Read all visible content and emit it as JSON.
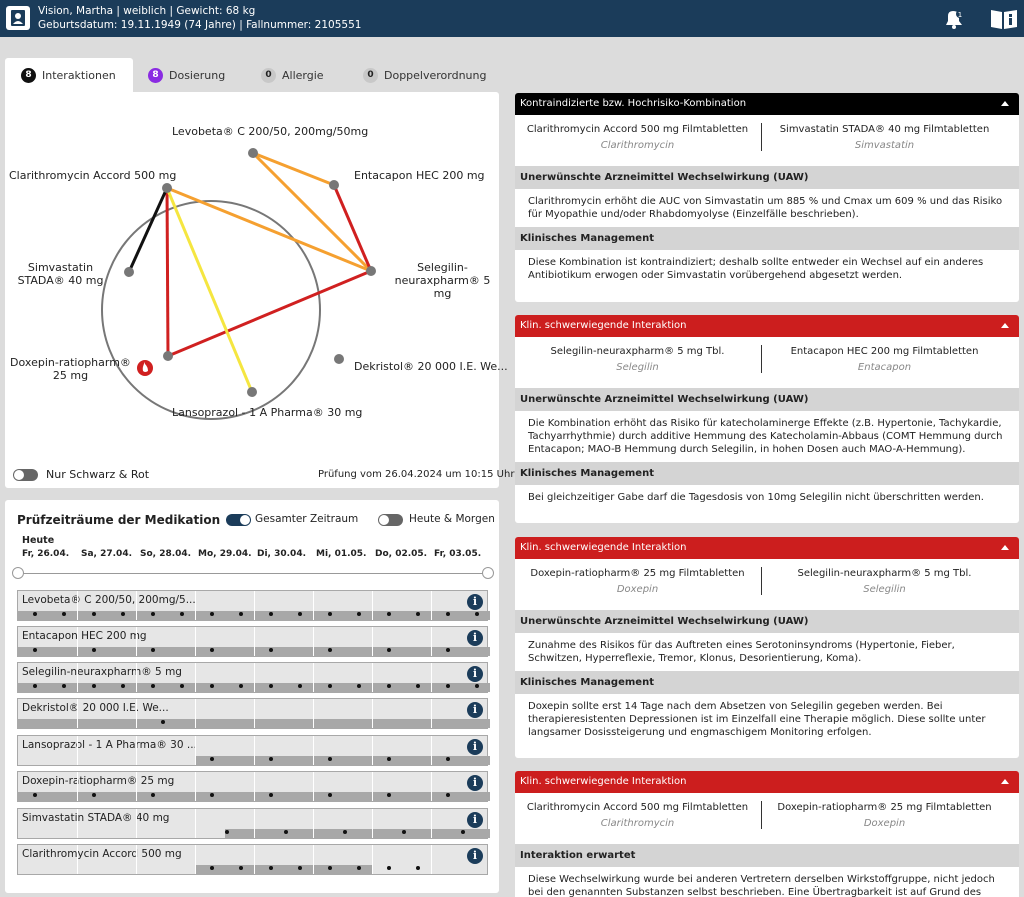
{
  "patient": {
    "line1": "Vision, Martha | weiblich | Gewicht: 68 kg",
    "line2": "Geburtsdatum: 19.11.1949 (74 Jahre) | Fallnummer: 2105551",
    "notifications": "1"
  },
  "tabs": [
    {
      "count": "8",
      "label": "Interaktionen",
      "color": "#111111"
    },
    {
      "count": "8",
      "label": "Dosierung",
      "color": "#8a2be2"
    },
    {
      "count": "0",
      "label": "Allergie",
      "color": "#cccccc"
    },
    {
      "count": "0",
      "label": "Doppelverordnung",
      "color": "#cccccc"
    }
  ],
  "graph": {
    "nodes": [
      "Levobeta® C 200/50, 200mg/50mg",
      "Entacapon HEC 200 mg",
      "Selegilin-neuraxpharm® 5 mg",
      "Dekristol® 20 000 I.E. We...",
      "Lansoprazol - 1 A Pharma® 30 mg",
      "Doxepin-ratiopharm® 25 mg",
      "Simvastatin STADA® 40 mg",
      "Clarithromycin Accord 500 mg"
    ],
    "toggle_label": "Nur Schwarz & Rot",
    "check_date": "Prüfung vom 26.04.2024 um 10:15 Uhr",
    "edge_colors": {
      "black": "#111111",
      "red": "#d02020",
      "orange": "#f5a030",
      "yellow": "#f5e640"
    }
  },
  "periods": {
    "title": "Prüfzeiträume der Medikation",
    "toggle1": "Gesamter Zeitraum",
    "toggle2": "Heute & Morgen",
    "today": "Heute",
    "days": [
      "Fr, 26.04.",
      "Sa, 27.04.",
      "So, 28.04.",
      "Mo, 29.04.",
      "Di, 30.04.",
      "Mi, 01.05.",
      "Do, 02.05.",
      "Fr, 03.05."
    ],
    "meds": [
      "Levobeta® C 200/50, 200mg/5...",
      "Entacapon HEC 200 mg",
      "Selegilin-neuraxpharm® 5 mg",
      "Dekristol® 20 000 I.E. We...",
      "Lansoprazol - 1 A Pharma® 30 ...",
      "Doxepin-ratiopharm® 25 mg",
      "Simvastatin STADA® 40 mg",
      "Clarithromycin Accord 500 mg"
    ]
  },
  "cards": [
    {
      "header": "Kontraindizierte bzw. Hochrisiko-Kombination",
      "color": "#000000",
      "drug1": "Clarithromycin Accord 500 mg Filmtabletten",
      "sub1": "Clarithromycin",
      "drug2": "Simvastatin STADA® 40 mg Filmtabletten",
      "sub2": "Simvastatin",
      "s1": "Unerwünschte Arzneimittel Wechselwirkung (UAW)",
      "t1": "Clarithromycin erhöht die AUC von Simvastatin um 885 % und Cmax um 609 % und das Risiko für Myopathie und/oder Rhabdomyolyse (Einzelfälle beschrieben).",
      "s2": "Klinisches Management",
      "t2": "Diese Kombination ist kontraindiziert; deshalb sollte entweder ein Wechsel auf ein anderes Antibiotikum erwogen oder Simvastatin vorübergehend abgesetzt werden."
    },
    {
      "header": "Klin. schwerwiegende Interaktion",
      "color": "#cc1e1e",
      "drug1": "Selegilin-neuraxpharm® 5 mg Tbl.",
      "sub1": "Selegilin",
      "drug2": "Entacapon HEC 200 mg Filmtabletten",
      "sub2": "Entacapon",
      "s1": "Unerwünschte Arzneimittel Wechselwirkung (UAW)",
      "t1": "Die Kombination erhöht das Risiko für katecholaminerge Effekte (z.B. Hypertonie, Tachykardie, Tachyarrhythmie) durch additive Hemmung des Katecholamin-Abbaus (COMT Hemmung durch Entacapon; MAO-B Hemmung durch Selegilin, in hohen Dosen auch MAO-A-Hemmung).",
      "s2": "Klinisches Management",
      "t2": "Bei gleichzeitiger Gabe darf die Tagesdosis von 10mg Selegilin nicht überschritten werden."
    },
    {
      "header": "Klin. schwerwiegende Interaktion",
      "color": "#cc1e1e",
      "drug1": "Doxepin-ratiopharm® 25 mg Filmtabletten",
      "sub1": "Doxepin",
      "drug2": "Selegilin-neuraxpharm® 5 mg Tbl.",
      "sub2": "Selegilin",
      "s1": "Unerwünschte Arzneimittel Wechselwirkung (UAW)",
      "t1": "Zunahme des Risikos für das Auftreten eines Serotoninsyndroms (Hypertonie, Fieber, Schwitzen, Hyperreflexie, Tremor, Klonus, Desorientierung, Koma).",
      "s2": "Klinisches Management",
      "t2": "Doxepin sollte erst 14 Tage nach dem Absetzen von Selegilin gegeben werden. Bei therapieresistenten Depressionen ist im Einzelfall eine Therapie möglich. Diese sollte unter langsamer Dosissteigerung und engmaschigem Monitoring erfolgen."
    },
    {
      "header": "Klin. schwerwiegende Interaktion",
      "color": "#cc1e1e",
      "drug1": "Clarithromycin Accord 500 mg Filmtabletten",
      "sub1": "Clarithromycin",
      "drug2": "Doxepin-ratiopharm® 25 mg Filmtabletten",
      "sub2": "Doxepin",
      "s1": "Interaktion erwartet",
      "t1": "Diese Wechselwirkung wurde bei anderen Vertretern derselben Wirkstoffgruppe, nicht jedoch bei den genannten Substanzen selbst beschrieben. Eine Übertragbarkeit ist auf Grund des Mechanismus"
    }
  ]
}
